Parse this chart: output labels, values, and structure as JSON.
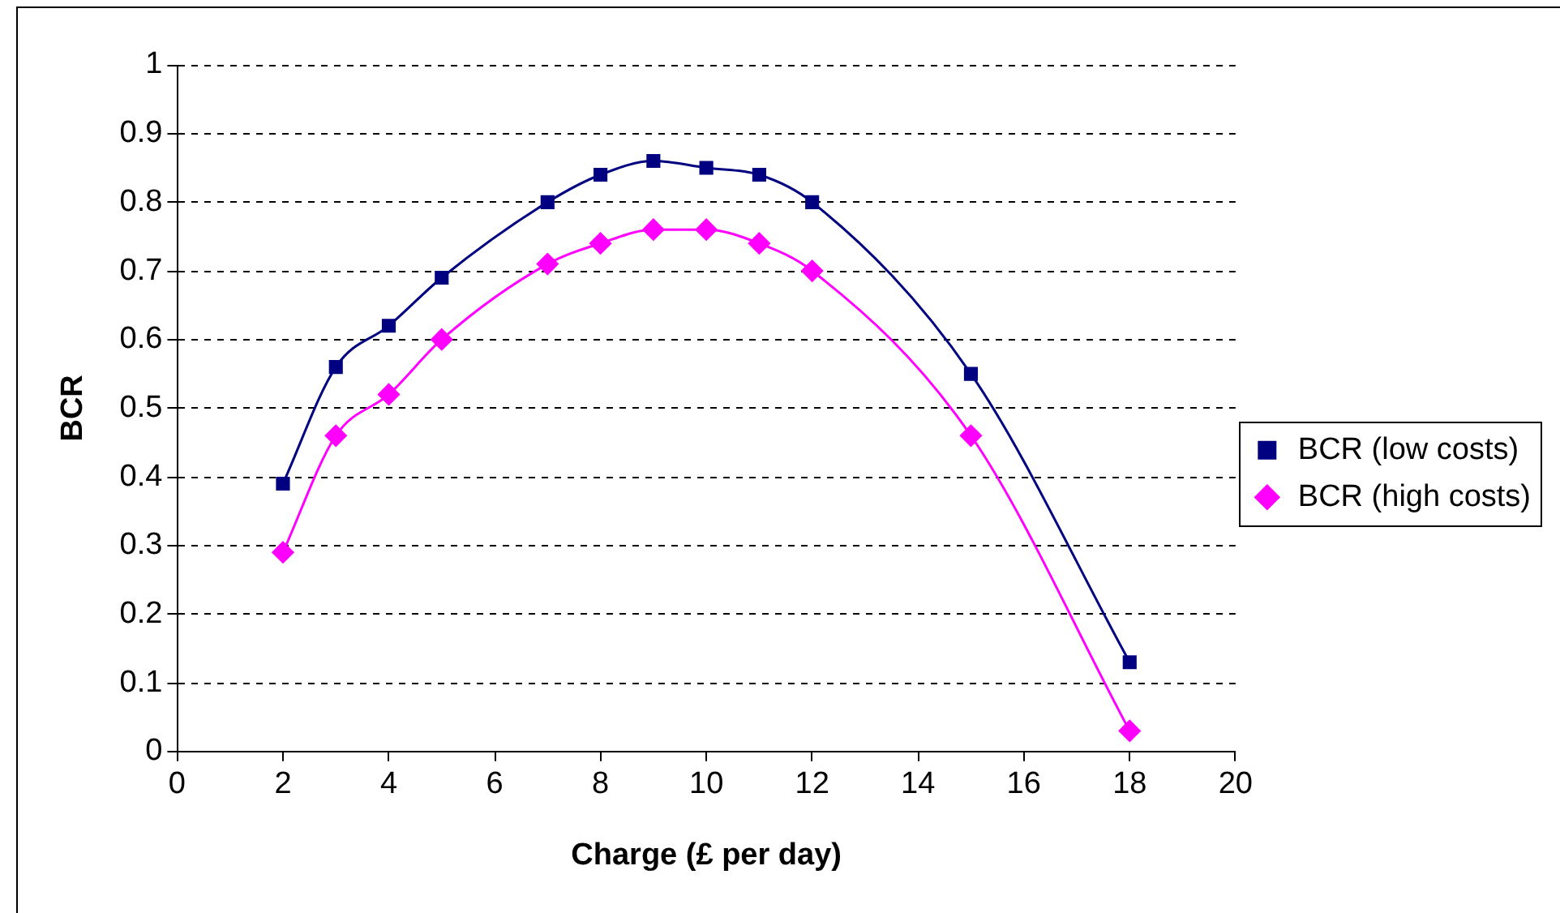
{
  "chart_data": {
    "type": "line",
    "xlabel": "Charge (£ per day)",
    "ylabel": "BCR",
    "xlim": [
      0,
      20
    ],
    "xticks": [
      0,
      2,
      4,
      6,
      8,
      10,
      12,
      14,
      16,
      18,
      20
    ],
    "ylim": [
      0,
      1
    ],
    "yticks": [
      0,
      0.1,
      0.2,
      0.3,
      0.4,
      0.5,
      0.6,
      0.7,
      0.8,
      0.9,
      1
    ],
    "grid": "y",
    "legend": "right",
    "series": [
      {
        "name": "BCR (low costs)",
        "color": "#000080",
        "marker": "square",
        "x": [
          2,
          3,
          4,
          5,
          7,
          8,
          9,
          10,
          11,
          12,
          15,
          18
        ],
        "values": [
          0.39,
          0.56,
          0.62,
          0.69,
          0.8,
          0.84,
          0.86,
          0.85,
          0.84,
          0.8,
          0.55,
          0.13
        ]
      },
      {
        "name": "BCR (high costs)",
        "color": "#ff00ff",
        "marker": "diamond",
        "x": [
          2,
          3,
          4,
          5,
          7,
          8,
          9,
          10,
          11,
          12,
          15,
          18
        ],
        "values": [
          0.29,
          0.46,
          0.52,
          0.6,
          0.71,
          0.74,
          0.76,
          0.76,
          0.74,
          0.7,
          0.46,
          0.03
        ]
      }
    ]
  }
}
